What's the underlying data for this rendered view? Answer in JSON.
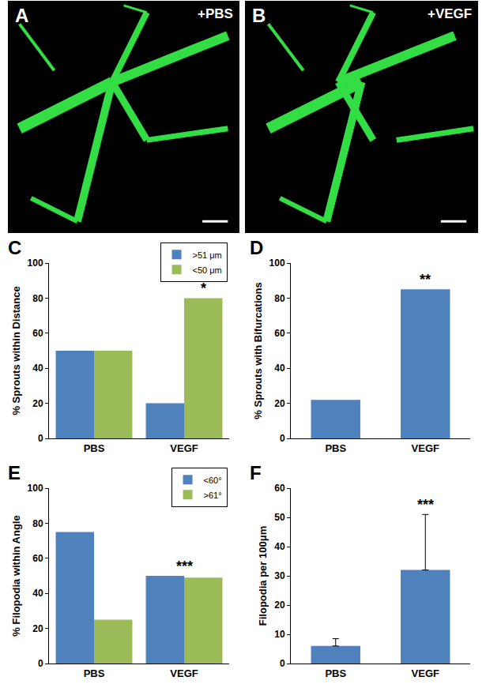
{
  "images": [
    {
      "title": "A",
      "caption": "+PBS"
    },
    {
      "title": "B",
      "caption": "+VEGF"
    }
  ],
  "chart_data": [
    {
      "title": "C",
      "type": "bar",
      "categories": [
        "PBS",
        "VEGF"
      ],
      "series": [
        {
          "name": ">51 μm",
          "color": "#4f81bd",
          "values": [
            50,
            20
          ]
        },
        {
          "name": "<50 μm",
          "color": "#9bbb59",
          "values": [
            50,
            80
          ]
        }
      ],
      "y_label": "% Sprouts within Distance",
      "ylim": [
        0,
        100
      ],
      "yticks": [
        0,
        20,
        40,
        60,
        80,
        100
      ],
      "legend": "upper right",
      "annotations": [
        {
          "category": "VEGF",
          "series": "<50 μm",
          "text": "*"
        }
      ]
    },
    {
      "title": "D",
      "type": "bar",
      "categories": [
        "PBS",
        "VEGF"
      ],
      "series": [
        {
          "color": "#4f81bd",
          "values": [
            22,
            85
          ]
        }
      ],
      "y_label": "% Sprouts with Bifurcations",
      "ylim": [
        0,
        100
      ],
      "yticks": [
        0,
        20,
        40,
        60,
        80,
        100
      ],
      "annotations": [
        {
          "category": "VEGF",
          "text": "**"
        }
      ]
    },
    {
      "title": "E",
      "type": "bar",
      "categories": [
        "PBS",
        "VEGF"
      ],
      "series": [
        {
          "name": "<60°",
          "color": "#4f81bd",
          "values": [
            75,
            50
          ]
        },
        {
          "name": ">61°",
          "color": "#9bbb59",
          "values": [
            25,
            49
          ]
        }
      ],
      "y_label": "% Filopodia within Angle",
      "ylim": [
        0,
        100
      ],
      "yticks": [
        0,
        20,
        40,
        60,
        80,
        100
      ],
      "legend": "upper right",
      "annotations": [
        {
          "category": "VEGF",
          "text": "***"
        }
      ]
    },
    {
      "title": "F",
      "type": "bar",
      "categories": [
        "PBS",
        "VEGF"
      ],
      "series": [
        {
          "color": "#4f81bd",
          "values": [
            6,
            32
          ],
          "errors": [
            2.5,
            19
          ]
        }
      ],
      "y_label": "Filopodia per 100μm",
      "ylim": [
        0,
        60
      ],
      "yticks": [
        0,
        10,
        20,
        30,
        40,
        50,
        60
      ],
      "annotations": [
        {
          "category": "VEGF",
          "text": "***"
        }
      ]
    }
  ]
}
